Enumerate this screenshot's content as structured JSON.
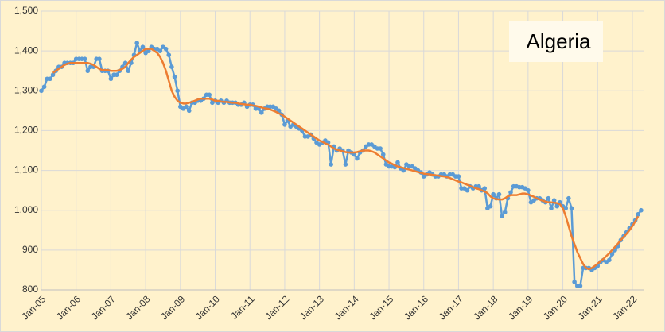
{
  "chart_data": {
    "type": "line",
    "title": "Algeria",
    "categories": [
      "Jan-05",
      null,
      null,
      null,
      null,
      null,
      null,
      null,
      null,
      null,
      null,
      null,
      "Jan-06",
      null,
      null,
      null,
      null,
      null,
      null,
      null,
      null,
      null,
      null,
      null,
      "Jan-07",
      null,
      null,
      null,
      null,
      null,
      null,
      null,
      null,
      null,
      null,
      null,
      "Jan-08",
      null,
      null,
      null,
      null,
      null,
      null,
      null,
      null,
      null,
      null,
      null,
      "Jan-09",
      null,
      null,
      null,
      null,
      null,
      null,
      null,
      null,
      null,
      null,
      null,
      "Jan-10",
      null,
      null,
      null,
      null,
      null,
      null,
      null,
      null,
      null,
      null,
      null,
      "Jan-11",
      null,
      null,
      null,
      null,
      null,
      null,
      null,
      null,
      null,
      null,
      null,
      "Jan-12",
      null,
      null,
      null,
      null,
      null,
      null,
      null,
      null,
      null,
      null,
      null,
      "Jan-13",
      null,
      null,
      null,
      null,
      null,
      null,
      null,
      null,
      null,
      null,
      null,
      "Jan-14",
      null,
      null,
      null,
      null,
      null,
      null,
      null,
      null,
      null,
      null,
      null,
      "Jan-15",
      null,
      null,
      null,
      null,
      null,
      null,
      null,
      null,
      null,
      null,
      null,
      "Jan-16",
      null,
      null,
      null,
      null,
      null,
      null,
      null,
      null,
      null,
      null,
      null,
      "Jan-17",
      null,
      null,
      null,
      null,
      null,
      null,
      null,
      null,
      null,
      null,
      null,
      "Jan-18",
      null,
      null,
      null,
      null,
      null,
      null,
      null,
      null,
      null,
      null,
      null,
      "Jan-19",
      null,
      null,
      null,
      null,
      null,
      null,
      null,
      null,
      null,
      null,
      null,
      "Jan-20",
      null,
      null,
      null,
      null,
      null,
      null,
      null,
      null,
      null,
      null,
      null,
      "Jan-21",
      null,
      null,
      null,
      null,
      null,
      null,
      null,
      null,
      null,
      null,
      null,
      "Jan-22",
      null,
      null,
      null
    ],
    "series": [
      {
        "color": "#5b9bd5",
        "markers": true,
        "values": [
          1300,
          1310,
          1330,
          1330,
          1340,
          1350,
          1360,
          1360,
          1370,
          1370,
          1370,
          1370,
          1380,
          1380,
          1380,
          1380,
          1350,
          1360,
          1360,
          1380,
          1380,
          1350,
          1350,
          1350,
          1330,
          1340,
          1340,
          1350,
          1360,
          1370,
          1350,
          1370,
          1390,
          1420,
          1400,
          1410,
          1395,
          1400,
          1410,
          1405,
          1405,
          1400,
          1410,
          1405,
          1390,
          1360,
          1335,
          1300,
          1260,
          1255,
          1260,
          1250,
          1270,
          1270,
          1275,
          1275,
          1280,
          1290,
          1290,
          1270,
          1275,
          1270,
          1275,
          1270,
          1275,
          1270,
          1270,
          1270,
          1265,
          1265,
          1270,
          1260,
          1265,
          1265,
          1255,
          1255,
          1245,
          1255,
          1260,
          1260,
          1260,
          1255,
          1250,
          1240,
          1215,
          1225,
          1210,
          1215,
          1210,
          1205,
          1200,
          1185,
          1185,
          1190,
          1180,
          1170,
          1165,
          1170,
          1175,
          1170,
          1115,
          1160,
          1150,
          1155,
          1150,
          1115,
          1150,
          1145,
          1140,
          1130,
          1145,
          1150,
          1160,
          1165,
          1165,
          1160,
          1155,
          1155,
          1140,
          1115,
          1110,
          1110,
          1108,
          1120,
          1105,
          1100,
          1115,
          1110,
          1110,
          1105,
          1100,
          1095,
          1085,
          1090,
          1095,
          1090,
          1085,
          1085,
          1090,
          1090,
          1085,
          1090,
          1090,
          1085,
          1085,
          1055,
          1055,
          1050,
          1060,
          1055,
          1060,
          1060,
          1050,
          1055,
          1005,
          1010,
          1040,
          1030,
          1040,
          985,
          995,
          1030,
          1045,
          1060,
          1060,
          1058,
          1058,
          1055,
          1050,
          1020,
          1025,
          1030,
          1030,
          1025,
          1020,
          1030,
          1005,
          1025,
          1010,
          1020,
          1010,
          1005,
          1030,
          1005,
          820,
          810,
          810,
          855,
          855,
          855,
          850,
          855,
          860,
          870,
          875,
          870,
          875,
          890,
          900,
          910,
          925,
          935,
          945,
          955,
          965,
          975,
          990,
          1000
        ]
      },
      {
        "color": "#ed7d31",
        "markers": false,
        "values": [
          null,
          null,
          null,
          null,
          1345,
          1350,
          1355,
          1360,
          1365,
          1368,
          1370,
          1370,
          1370,
          1370,
          1370,
          1370,
          1370,
          1368,
          1365,
          1360,
          1355,
          1352,
          1352,
          1352,
          1350,
          1350,
          1350,
          1352,
          1355,
          1360,
          1370,
          1378,
          1385,
          1390,
          1395,
          1400,
          1405,
          1405,
          1405,
          1400,
          1395,
          1385,
          1370,
          1350,
          1325,
          1300,
          1285,
          1275,
          1270,
          1268,
          1268,
          1270,
          1272,
          1275,
          1278,
          1280,
          1280,
          1280,
          1280,
          1278,
          1275,
          1275,
          1273,
          1272,
          1272,
          1271,
          1270,
          1270,
          1268,
          1267,
          1266,
          1265,
          1265,
          1263,
          1262,
          1260,
          1258,
          1256,
          1255,
          1253,
          1250,
          1247,
          1243,
          1240,
          1235,
          1230,
          1225,
          1220,
          1215,
          1210,
          1205,
          1200,
          1195,
          1190,
          1185,
          1180,
          1175,
          1172,
          1168,
          1165,
          1160,
          1155,
          1152,
          1150,
          1148,
          1146,
          1145,
          1145,
          1145,
          1146,
          1148,
          1150,
          1150,
          1150,
          1148,
          1145,
          1140,
          1135,
          1130,
          1125,
          1120,
          1117,
          1113,
          1110,
          1108,
          1106,
          1104,
          1102,
          1100,
          1098,
          1096,
          1094,
          1092,
          1091,
          1090,
          1089,
          1088,
          1087,
          1086,
          1085,
          1083,
          1081,
          1078,
          1075,
          1072,
          1070,
          1067,
          1064,
          1061,
          1058,
          1055,
          1053,
          1050,
          1047,
          1043,
          1035,
          1030,
          1028,
          1027,
          1027,
          1030,
          1035,
          1038,
          1038,
          1038,
          1040,
          1042,
          1042,
          1040,
          1037,
          1034,
          1030,
          1027,
          1024,
          1022,
          1020,
          1020,
          1019,
          1018,
          1015,
          1005,
          985,
          960,
          935,
          915,
          895,
          880,
          865,
          855,
          852,
          855,
          860,
          866,
          872,
          878,
          885,
          892,
          900,
          908,
          916,
          925,
          933,
          941,
          950,
          960,
          972,
          985,
          null
        ]
      }
    ],
    "ylim": [
      800,
      1500
    ],
    "yticks": [
      800,
      900,
      {
        "value": 1000,
        "label": "1,000"
      },
      {
        "value": 1100,
        "label": "1,100"
      },
      {
        "value": 1200,
        "label": "1,200"
      },
      {
        "value": 1300,
        "label": "1,300"
      },
      {
        "value": 1400,
        "label": "1,400"
      },
      {
        "value": 1500,
        "label": "1,500"
      }
    ],
    "grid": true
  }
}
